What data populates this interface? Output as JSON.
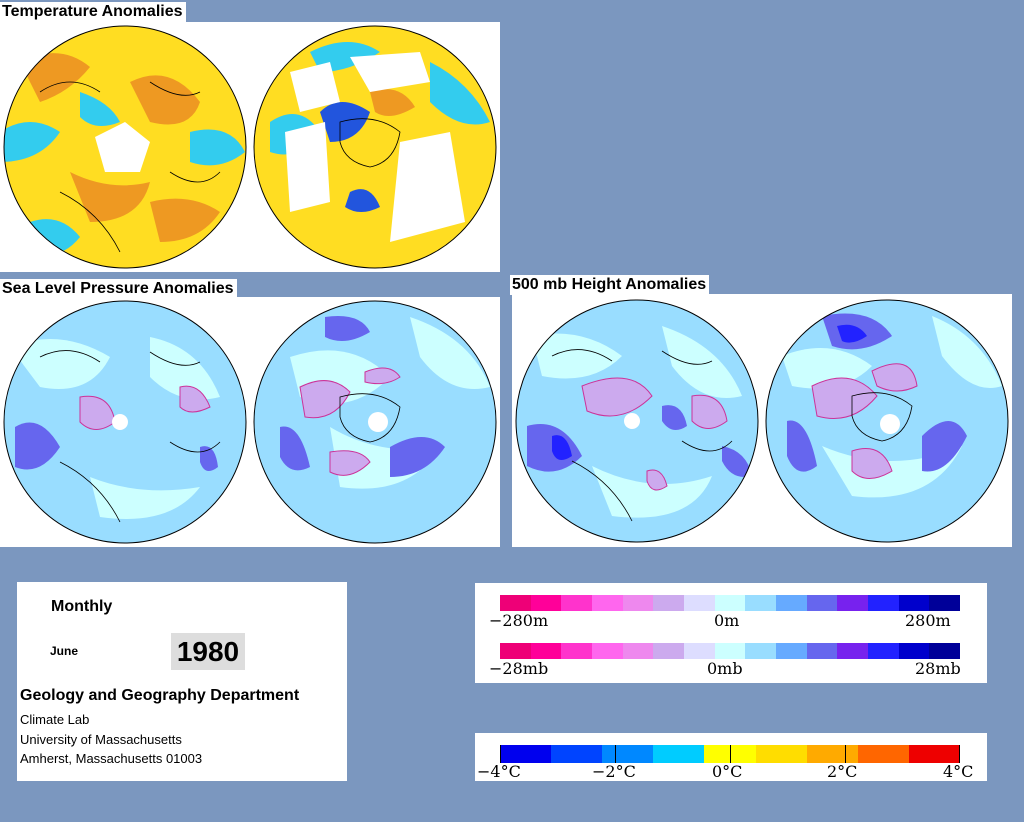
{
  "panels": {
    "temperature_title": "Temperature Anomalies",
    "slp_title": "Sea Level Pressure Anomalies",
    "height_title": "500 mb Height Anomalies"
  },
  "info": {
    "period": "Monthly",
    "month": "June",
    "year": "1980",
    "department": "Geology and Geography Department",
    "lab": "Climate Lab",
    "university": "University of Massachusetts",
    "address": "Amherst, Massachusetts 01003"
  },
  "legend_pressure": {
    "height_labels": [
      "−280m",
      "0m",
      "280m"
    ],
    "slp_labels": [
      "−28mb",
      "0mb",
      "28mb"
    ],
    "colors": [
      "#ee0077",
      "#ff0099",
      "#ff33cc",
      "#ff66ee",
      "#ee88ee",
      "#ccaaee",
      "#ddddff",
      "#ccffff",
      "#99ddff",
      "#66aaff",
      "#6666ee",
      "#7722ee",
      "#2222ff",
      "#0000cc",
      "#000099"
    ]
  },
  "legend_temperature": {
    "labels": [
      "−4°C",
      "−2°C",
      "0°C",
      "2°C",
      "4°C"
    ],
    "colors": [
      "#0000ee",
      "#0044ff",
      "#0088ff",
      "#00ccff",
      "#ffff00",
      "#ffdd00",
      "#ffaa00",
      "#ff6600",
      "#ee0000"
    ]
  }
}
